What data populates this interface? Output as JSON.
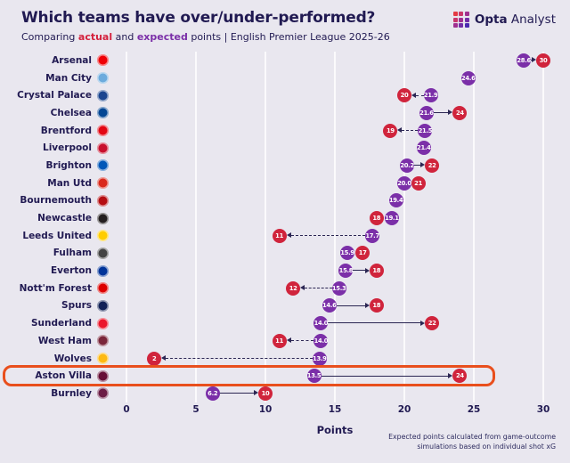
{
  "header": {
    "title": "Which teams have over/under-performed?",
    "subtitle_prefix": "Comparing ",
    "subtitle_actual": "actual",
    "subtitle_mid": " and ",
    "subtitle_expected": "expected",
    "subtitle_suffix": " points | English Premier League 2025-26"
  },
  "brand": {
    "bold": "Opta",
    "light": "Analyst",
    "icon_colors": [
      "#e43b44",
      "#c9366b",
      "#a03090",
      "#c9366b",
      "#a03090",
      "#722da6",
      "#a03090",
      "#722da6",
      "#4b2ab0"
    ]
  },
  "colors": {
    "background": "#e9e7ef",
    "navy": "#211a52",
    "actual": "#d0243c",
    "expected": "#7b2fa8",
    "highlight": "#e94f1d",
    "arrow": "#2b2653"
  },
  "chart_data": {
    "type": "scatter",
    "subtype": "dumbbell",
    "xlabel": "Points",
    "xlim": [
      0,
      30
    ],
    "x_ticks": [
      0,
      5,
      10,
      15,
      20,
      25,
      30
    ],
    "grid": "vertical",
    "legend": [
      {
        "name": "actual",
        "color": "#d0243c"
      },
      {
        "name": "expected",
        "color": "#7b2fa8"
      }
    ],
    "footnote": [
      "Expected points calculated from game-outcome",
      "simulations based on individual shot xG"
    ],
    "teams": [
      {
        "name": "Arsenal",
        "expected": 28.6,
        "actual": 30,
        "logo_color": "#EF0107"
      },
      {
        "name": "Man City",
        "expected": 24.6,
        "actual": null,
        "logo_color": "#6CABDD"
      },
      {
        "name": "Crystal Palace",
        "expected": 21.9,
        "actual": 20,
        "logo_color": "#1B458F"
      },
      {
        "name": "Chelsea",
        "expected": 21.6,
        "actual": 24,
        "logo_color": "#034694"
      },
      {
        "name": "Brentford",
        "expected": 21.5,
        "actual": 19,
        "logo_color": "#E30613"
      },
      {
        "name": "Liverpool",
        "expected": 21.4,
        "actual": null,
        "logo_color": "#C8102E"
      },
      {
        "name": "Brighton",
        "expected": 20.2,
        "actual": 22,
        "logo_color": "#0057B8"
      },
      {
        "name": "Man Utd",
        "expected": 20.0,
        "actual": 21,
        "logo_color": "#DA291C"
      },
      {
        "name": "Bournemouth",
        "expected": 19.4,
        "actual": null,
        "logo_color": "#B50E12"
      },
      {
        "name": "Newcastle",
        "expected": 19.1,
        "actual": 18,
        "logo_color": "#241F20"
      },
      {
        "name": "Leeds United",
        "expected": 17.7,
        "actual": 11,
        "logo_color": "#FFCD00"
      },
      {
        "name": "Fulham",
        "expected": 15.9,
        "actual": 17,
        "logo_color": "#444444"
      },
      {
        "name": "Everton",
        "expected": 15.8,
        "actual": 18,
        "logo_color": "#003399"
      },
      {
        "name": "Nott'm Forest",
        "expected": 15.3,
        "actual": 12,
        "logo_color": "#DD0000"
      },
      {
        "name": "Spurs",
        "expected": 14.6,
        "actual": 18,
        "logo_color": "#132257"
      },
      {
        "name": "Sunderland",
        "expected": 14.0,
        "actual": 22,
        "logo_color": "#EB172B"
      },
      {
        "name": "West Ham",
        "expected": 14.0,
        "actual": 11,
        "logo_color": "#7A263A"
      },
      {
        "name": "Wolves",
        "expected": 13.9,
        "actual": 2,
        "logo_color": "#FDB913"
      },
      {
        "name": "Aston Villa",
        "expected": 13.5,
        "actual": 24,
        "logo_color": "#670E36",
        "highlight": true
      },
      {
        "name": "Burnley",
        "expected": 6.2,
        "actual": 10,
        "logo_color": "#6C1D45"
      }
    ]
  }
}
